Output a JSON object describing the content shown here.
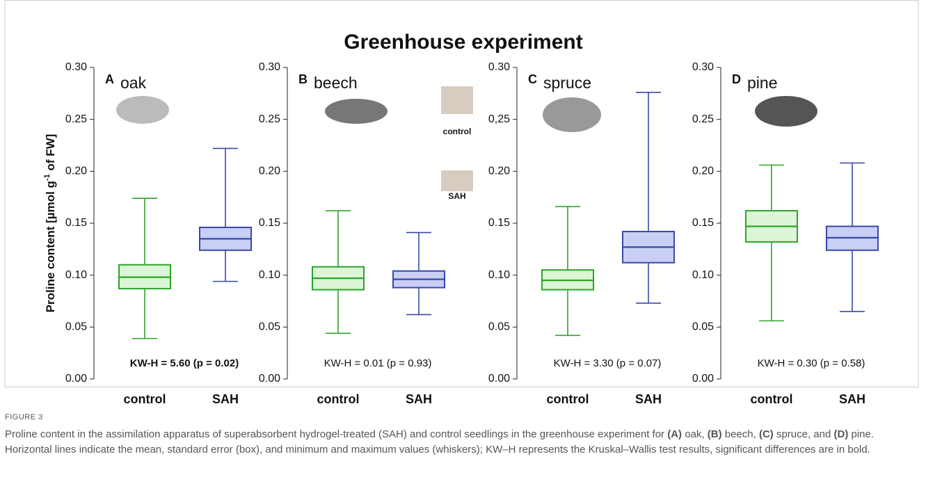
{
  "figure": {
    "title": "Greenhouse experiment",
    "ylabel": [
      "Proline content  [µmol g",
      "-1",
      " of FW]"
    ],
    "label": "FIGURE 3",
    "caption": [
      "Proline content in the assimilation apparatus of superabsorbent hydrogel-treated (SAH) and control seedlings in the greenhouse experiment for ",
      "(A)",
      " oak, ",
      "(B)",
      " beech, ",
      "(C)",
      " spruce, and ",
      "(D)",
      " pine. Horizontal lines indicate the mean, standard error (box), and minimum and maximum values (whiskers); KW–H represents the Kruskal–Wallis test results, significant differences are in bold."
    ]
  },
  "chart_data": [
    {
      "type": "box",
      "panel": "A",
      "species": "oak",
      "annotation": "KW-H = 5.60 (p = 0.02)",
      "annotation_bold": true,
      "ylim": [
        0,
        0.3
      ],
      "yticks": [
        {
          "value": 0,
          "label": "0.00"
        },
        {
          "value": 0.05,
          "label": "0.05"
        },
        {
          "value": 0.1,
          "label": "0.10"
        },
        {
          "value": 0.15,
          "label": "0.15"
        },
        {
          "value": 0.2,
          "label": "0.20"
        },
        {
          "value": 0.25,
          "label": "0.25"
        },
        {
          "value": 0.3,
          "label": "0.30"
        }
      ],
      "boxes": [
        {
          "category": "control",
          "color": "#2aa52a",
          "fill": "#dcf5d6",
          "min": 0.039,
          "box_low": 0.087,
          "mean": 0.098,
          "box_high": 0.11,
          "max": 0.174
        },
        {
          "category": "SAH",
          "color": "#3848a8",
          "fill": "#c9cff5",
          "min": 0.094,
          "box_low": 0.124,
          "mean": 0.135,
          "box_high": 0.146,
          "max": 0.222
        }
      ]
    },
    {
      "type": "box",
      "panel": "B",
      "species": "beech",
      "annotation": "KW-H = 0.01 (p = 0.93)",
      "annotation_bold": false,
      "icon_labels": [
        "control",
        "SAH"
      ],
      "ylim": [
        0,
        0.3
      ],
      "yticks": [
        {
          "value": 0,
          "label": "0.00"
        },
        {
          "value": 0.05,
          "label": "0.05"
        },
        {
          "value": 0.1,
          "label": "0.10"
        },
        {
          "value": 0.15,
          "label": "0.15"
        },
        {
          "value": 0.2,
          "label": "0.20"
        },
        {
          "value": 0.25,
          "label": "0.25"
        },
        {
          "value": 0.3,
          "label": "0.30"
        }
      ],
      "boxes": [
        {
          "category": "control",
          "color": "#2aa52a",
          "fill": "#dcf5d6",
          "min": 0.044,
          "box_low": 0.086,
          "mean": 0.097,
          "box_high": 0.108,
          "max": 0.162
        },
        {
          "category": "SAH",
          "color": "#3848a8",
          "fill": "#c9cff5",
          "min": 0.062,
          "box_low": 0.088,
          "mean": 0.096,
          "box_high": 0.104,
          "max": 0.141
        }
      ]
    },
    {
      "type": "box",
      "panel": "C",
      "species": "spruce",
      "annotation": "KW-H = 3.30 (p = 0.07)",
      "annotation_bold": false,
      "ylim": [
        0,
        0.3
      ],
      "yticks": [
        {
          "value": 0,
          "label": "0.00"
        },
        {
          "value": 0.05,
          "label": "0.05"
        },
        {
          "value": 0.1,
          "label": "0.10"
        },
        {
          "value": 0.15,
          "label": "0.15"
        },
        {
          "value": 0.2,
          "label": "0.20"
        },
        {
          "value": 0.25,
          "label": "0,25"
        },
        {
          "value": 0.3,
          "label": "0.30"
        }
      ],
      "boxes": [
        {
          "category": "control",
          "color": "#2aa52a",
          "fill": "#dcf5d6",
          "min": 0.042,
          "box_low": 0.086,
          "mean": 0.095,
          "box_high": 0.105,
          "max": 0.166
        },
        {
          "category": "SAH",
          "color": "#3848a8",
          "fill": "#c9cff5",
          "min": 0.073,
          "box_low": 0.112,
          "mean": 0.127,
          "box_high": 0.142,
          "max": 0.276
        }
      ]
    },
    {
      "type": "box",
      "panel": "D",
      "species": "pine",
      "annotation": "KW-H = 0.30 (p = 0.58)",
      "annotation_bold": false,
      "ylim": [
        0,
        0.3
      ],
      "yticks": [
        {
          "value": 0,
          "label": "0.00"
        },
        {
          "value": 0.05,
          "label": "0.05"
        },
        {
          "value": 0.1,
          "label": "0.10"
        },
        {
          "value": 0.15,
          "label": "0.15"
        },
        {
          "value": 0.2,
          "label": "0.20"
        },
        {
          "value": 0.25,
          "label": "0.25"
        },
        {
          "value": 0.3,
          "label": "0.30"
        }
      ],
      "boxes": [
        {
          "category": "control",
          "color": "#2aa52a",
          "fill": "#dcf5d6",
          "min": 0.056,
          "box_low": 0.132,
          "mean": 0.147,
          "box_high": 0.162,
          "max": 0.206
        },
        {
          "category": "SAH",
          "color": "#3848a8",
          "fill": "#c9cff5",
          "min": 0.065,
          "box_low": 0.124,
          "mean": 0.136,
          "box_high": 0.147,
          "max": 0.208
        }
      ]
    }
  ]
}
